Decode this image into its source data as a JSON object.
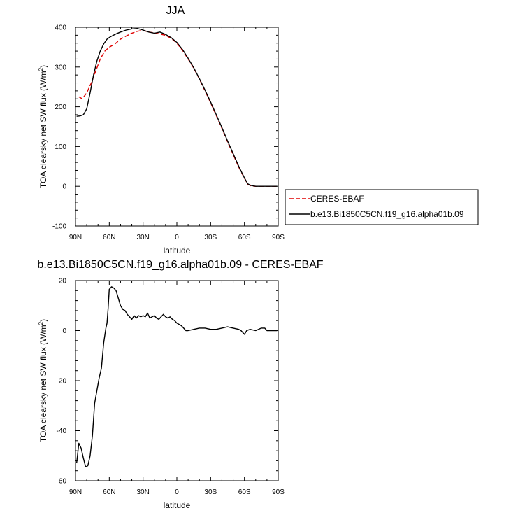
{
  "chart_data": [
    {
      "type": "line",
      "title": "JJA",
      "xlabel": "latitude",
      "ylabel": "TOA clearsky net SW flux (W/m",
      "ylabel_sup": "2",
      "ylabel_close": ")",
      "xlim": [
        90,
        -90
      ],
      "ylim": [
        -100,
        400
      ],
      "x_ticks": [
        90,
        60,
        30,
        0,
        -30,
        -60,
        -90
      ],
      "x_tick_labels": [
        "90N",
        "60N",
        "30N",
        "0",
        "30S",
        "60S",
        "90S"
      ],
      "y_ticks": [
        -100,
        0,
        100,
        200,
        300,
        400
      ],
      "y_tick_labels": [
        "-100",
        "0",
        "100",
        "200",
        "300",
        "400"
      ],
      "legend": {
        "placement": "right",
        "entries": [
          "CERES-EBAF",
          "b.e13.Bi1850C5CN.f19_g16.alpha01b.09"
        ]
      },
      "series": [
        {
          "name": "CERES-EBAF",
          "color": "#e00000",
          "dash": "dashed",
          "x": [
            87,
            84,
            80,
            76,
            72,
            68,
            64,
            60,
            55,
            50,
            45,
            40,
            35,
            30,
            25,
            20,
            15,
            10,
            5,
            0,
            -5,
            -10,
            -15,
            -20,
            -25,
            -30,
            -35,
            -40,
            -45,
            -50,
            -55,
            -60,
            -63,
            -66,
            -70,
            -75,
            -80,
            -85,
            -89
          ],
          "y": [
            225,
            220,
            235,
            260,
            290,
            320,
            340,
            350,
            358,
            370,
            378,
            385,
            390,
            392,
            388,
            386,
            383,
            380,
            372,
            360,
            342,
            320,
            297,
            270,
            240,
            210,
            178,
            146,
            112,
            80,
            48,
            20,
            5,
            1,
            0,
            0,
            0,
            0,
            0
          ]
        },
        {
          "name": "b.e13.Bi1850C5CN.f19_g16.alpha01b.09",
          "color": "#000000",
          "dash": "solid",
          "x": [
            89,
            86,
            83,
            80,
            77,
            74,
            71,
            68,
            65,
            62,
            59,
            55,
            50,
            45,
            40,
            35,
            30,
            25,
            20,
            15,
            10,
            5,
            0,
            -5,
            -10,
            -15,
            -20,
            -25,
            -30,
            -35,
            -40,
            -45,
            -50,
            -55,
            -60,
            -63,
            -66,
            -70,
            -75,
            -80,
            -85,
            -89
          ],
          "y": [
            176,
            177,
            180,
            195,
            235,
            280,
            315,
            340,
            358,
            370,
            376,
            382,
            388,
            393,
            396,
            397,
            393,
            388,
            385,
            388,
            382,
            374,
            362,
            344,
            322,
            298,
            271,
            242,
            212,
            180,
            148,
            114,
            82,
            50,
            21,
            6,
            2,
            0,
            0,
            0,
            0,
            0
          ]
        }
      ]
    },
    {
      "type": "line",
      "title": "b.e13.Bi1850C5CN.f19_g16.alpha01b.09 - CERES-EBAF",
      "xlabel": "latitude",
      "ylabel": "TOA clearsky net SW flux (W/m",
      "ylabel_sup": "2",
      "ylabel_close": ")",
      "xlim": [
        90,
        -90
      ],
      "ylim": [
        -60,
        20
      ],
      "x_ticks": [
        90,
        60,
        30,
        0,
        -30,
        -60,
        -90
      ],
      "x_tick_labels": [
        "90N",
        "60N",
        "30N",
        "0",
        "30S",
        "60S",
        "90S"
      ],
      "y_ticks": [
        -60,
        -40,
        -20,
        0,
        20
      ],
      "y_tick_labels": [
        "-60",
        "-40",
        "-20",
        "0",
        "20"
      ],
      "series": [
        {
          "color": "#000000",
          "dash": "solid",
          "x": [
            89,
            87,
            85,
            83,
            81,
            79,
            77,
            75,
            73,
            71,
            69,
            67,
            65,
            63,
            62,
            61,
            60,
            58,
            56,
            54,
            52,
            50,
            48,
            46,
            44,
            42,
            40,
            38,
            36,
            34,
            32,
            30,
            28,
            26,
            24,
            22,
            20,
            18,
            16,
            14,
            12,
            10,
            8,
            6,
            4,
            2,
            0,
            -2,
            -4,
            -6,
            -8,
            -10,
            -15,
            -20,
            -25,
            -30,
            -35,
            -40,
            -45,
            -50,
            -55,
            -57,
            -60,
            -62,
            -65,
            -70,
            -75,
            -78,
            -80,
            -85,
            -89
          ],
          "y": [
            -53,
            -45,
            -47,
            -51,
            -54.5,
            -54,
            -50,
            -42,
            -29,
            -24,
            -19,
            -15,
            -5,
            1,
            3,
            9,
            16.5,
            17.5,
            17,
            16,
            13,
            10,
            8.5,
            8,
            6.5,
            5.5,
            4.5,
            6,
            5,
            6,
            5.5,
            6,
            5.5,
            7,
            5,
            5.5,
            6,
            5,
            4.5,
            5.5,
            6.5,
            5.5,
            5,
            5.5,
            4.5,
            4,
            3,
            2.5,
            2,
            1,
            0,
            0,
            0.5,
            1,
            1,
            0.5,
            0.5,
            1,
            1.5,
            1,
            0.5,
            0,
            -1.5,
            0,
            0.5,
            0,
            1,
            1,
            0,
            0,
            0
          ]
        }
      ]
    }
  ]
}
